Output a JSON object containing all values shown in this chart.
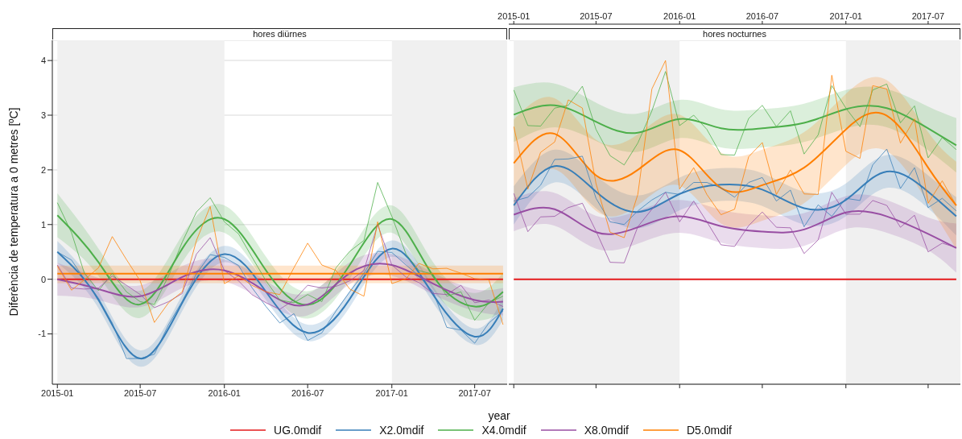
{
  "chart_data": [
    {
      "type": "line",
      "title": "hores diürnes",
      "xlabel": "year",
      "ylabel": "Diferència de temperatura a 0 metres [ºC]",
      "legend": "bottom",
      "grid": "y",
      "x": [
        "2015-01",
        "2015-02",
        "2015-03",
        "2015-04",
        "2015-05",
        "2015-06",
        "2015-07",
        "2015-08",
        "2015-09",
        "2015-10",
        "2015-11",
        "2015-12",
        "2016-01",
        "2016-02",
        "2016-03",
        "2016-04",
        "2016-05",
        "2016-06",
        "2016-07",
        "2016-08",
        "2016-09",
        "2016-10",
        "2016-11",
        "2016-12",
        "2017-01",
        "2017-02",
        "2017-03",
        "2017-04",
        "2017-05",
        "2017-06",
        "2017-07",
        "2017-08",
        "2017-09"
      ],
      "xlim": [
        "2014-12-21",
        "2017-09-10"
      ],
      "xticks": [
        "2015-01",
        "2015-07",
        "2016-01",
        "2016-07",
        "2017-01",
        "2017-07"
      ],
      "ylim": [
        -1.92,
        4.37
      ],
      "yticks": [
        -1,
        0,
        1,
        2,
        3,
        4
      ],
      "bands": [
        {
          "axis": "x",
          "from": "2015-01",
          "to": "2016-01",
          "color": "#f0f0f0"
        },
        {
          "axis": "x",
          "from": "2017-01",
          "to": "2017-09-10",
          "color": "#f0f0f0"
        }
      ],
      "series": [
        {
          "name": "UG.0mdif",
          "color": "#e41a1c",
          "x": [
            "2015-01",
            "2017-09"
          ],
          "values": [
            0,
            0
          ]
        },
        {
          "name": "X2.0mdif",
          "color": "#377eb8",
          "x": [
            "2015-01",
            "2015-04",
            "2015-07",
            "2015-10",
            "2016-01",
            "2016-04",
            "2016-07",
            "2016-10",
            "2017-01",
            "2017-04",
            "2017-07",
            "2017-09"
          ],
          "values": [
            0.5,
            -0.38,
            -1.45,
            -0.43,
            0.46,
            -0.23,
            -0.98,
            -0.36,
            0.56,
            -0.28,
            -1.05,
            -0.54
          ],
          "lower": [
            0.3,
            -0.53,
            -1.6,
            -0.58,
            0.31,
            -0.38,
            -1.13,
            -0.51,
            0.41,
            -0.43,
            -1.2,
            -0.74
          ],
          "upper": [
            0.7,
            -0.23,
            -1.3,
            -0.28,
            0.61,
            -0.08,
            -0.83,
            -0.21,
            0.71,
            -0.13,
            -0.9,
            -0.34
          ]
        },
        {
          "name": "X4.0mdif",
          "color": "#4daf4a",
          "x": [
            "2015-01",
            "2015-04",
            "2015-07",
            "2015-10",
            "2016-01",
            "2016-04",
            "2016-07",
            "2016-10",
            "2017-01",
            "2017-04",
            "2017-07",
            "2017-09"
          ],
          "values": [
            1.17,
            0.31,
            -0.46,
            0.56,
            1.1,
            0.16,
            -0.47,
            0.26,
            1.1,
            0.06,
            -0.5,
            -0.23
          ],
          "lower": [
            0.77,
            0.06,
            -0.71,
            0.31,
            0.85,
            -0.09,
            -0.72,
            0.01,
            0.85,
            -0.19,
            -0.75,
            -0.58
          ],
          "upper": [
            1.57,
            0.56,
            -0.21,
            0.81,
            1.35,
            0.41,
            -0.22,
            0.51,
            1.35,
            0.31,
            -0.25,
            0.12
          ]
        },
        {
          "name": "X8.0mdif",
          "color": "#984ea3",
          "x": [
            "2015-01",
            "2015-04",
            "2015-07",
            "2015-10",
            "2016-01",
            "2016-04",
            "2016-07",
            "2016-10",
            "2017-01",
            "2017-04",
            "2017-07",
            "2017-09"
          ],
          "values": [
            0.0,
            -0.18,
            -0.31,
            0.04,
            0.16,
            -0.23,
            -0.46,
            0.11,
            0.26,
            -0.08,
            -0.38,
            -0.41
          ],
          "lower": [
            -0.3,
            -0.38,
            -0.51,
            -0.16,
            -0.04,
            -0.43,
            -0.66,
            -0.09,
            0.06,
            -0.28,
            -0.58,
            -0.66
          ],
          "upper": [
            0.3,
            0.02,
            -0.11,
            0.24,
            0.36,
            -0.03,
            -0.26,
            0.31,
            0.46,
            0.12,
            -0.18,
            -0.16
          ]
        },
        {
          "name": "D5.0mdif",
          "color": "#ff7f00",
          "x": [
            "2015-01",
            "2017-09"
          ],
          "values": [
            0.1,
            0.1
          ],
          "lower": [
            -0.07,
            -0.07
          ],
          "upper": [
            0.25,
            0.25
          ]
        },
        {
          "color": "#377eb8",
          "values": [
            0.5,
            0.35,
            0.0,
            -0.35,
            -0.8,
            -1.45,
            -1.45,
            -1.37,
            -0.83,
            -0.4,
            0.1,
            0.45,
            0.4,
            0.25,
            -0.15,
            -0.5,
            -0.8,
            -0.63,
            -1.12,
            -0.98,
            -0.58,
            -0.23,
            0.11,
            0.51,
            0.49,
            0.26,
            0.06,
            -0.23,
            -0.88,
            -0.93,
            -1.17,
            -0.8,
            -0.58
          ]
        },
        {
          "color": "#4daf4a",
          "values": [
            1.4,
            0.85,
            0.11,
            -0.21,
            0.11,
            -0.23,
            -0.41,
            -0.46,
            0.06,
            0.68,
            1.23,
            1.49,
            1.05,
            0.83,
            0.41,
            -0.03,
            -0.38,
            -0.43,
            -0.28,
            -0.41,
            0.21,
            0.51,
            0.71,
            1.77,
            1.15,
            0.46,
            0.16,
            0.09,
            -0.31,
            -0.23,
            -0.75,
            -0.43,
            -0.31
          ]
        },
        {
          "color": "#984ea3",
          "values": [
            0.26,
            -0.16,
            -0.18,
            -0.16,
            0.06,
            -0.11,
            -0.28,
            -0.52,
            -0.41,
            -0.26,
            0.46,
            0.76,
            0.16,
            -0.03,
            -0.28,
            -0.43,
            -0.55,
            -0.38,
            -0.11,
            -0.16,
            -0.13,
            -0.03,
            0.16,
            1.0,
            0.26,
            0.04,
            -0.06,
            -0.26,
            -0.28,
            -0.11,
            -0.43,
            -0.38,
            -0.5
          ]
        },
        {
          "color": "#ff7f00",
          "values": [
            0.24,
            -0.2,
            -0.01,
            0.21,
            0.78,
            0.36,
            -0.03,
            -0.79,
            -0.43,
            -0.23,
            0.71,
            1.33,
            -0.08,
            0.06,
            -0.11,
            -0.23,
            -0.28,
            0.21,
            0.66,
            0.26,
            0.16,
            -0.18,
            -0.31,
            1.05,
            -0.08,
            0.01,
            0.29,
            0.19,
            0.2,
            0.11,
            0.01,
            -0.01,
            -0.83
          ]
        }
      ]
    },
    {
      "type": "line",
      "title": "hores nocturnes",
      "grid": "y",
      "tick_labels": false,
      "x": [
        "2015-01",
        "2015-02",
        "2015-03",
        "2015-04",
        "2015-05",
        "2015-06",
        "2015-07",
        "2015-08",
        "2015-09",
        "2015-10",
        "2015-11",
        "2015-12",
        "2016-01",
        "2016-02",
        "2016-03",
        "2016-04",
        "2016-05",
        "2016-06",
        "2016-07",
        "2016-08",
        "2016-09",
        "2016-10",
        "2016-11",
        "2016-12",
        "2017-01",
        "2017-02",
        "2017-03",
        "2017-04",
        "2017-05",
        "2017-06",
        "2017-07",
        "2017-08",
        "2017-09"
      ],
      "xlim": [
        "2014-12-21",
        "2017-09-10"
      ],
      "xticks": [
        {
          "value": "2015-01",
          "label": null
        },
        {
          "value": "2015-07",
          "label": null
        },
        {
          "value": "2016-01",
          "label": null
        },
        {
          "value": "2016-07",
          "label": null
        },
        {
          "value": "2017-01",
          "label": null
        },
        {
          "value": "2017-07",
          "label": null
        }
      ],
      "x2lim": [
        "2014-12-21",
        "2017-09-10"
      ],
      "x2ticks": [
        "2015-01",
        "2015-07",
        "2016-01",
        "2016-07",
        "2017-01",
        "2017-07"
      ],
      "ylim": [
        -1.92,
        4.37
      ],
      "yticks": [
        -1,
        0,
        1,
        2,
        3,
        4
      ],
      "bands": [
        {
          "axis": "x",
          "from": "2015-01",
          "to": "2016-01",
          "color": "#f0f0f0"
        },
        {
          "axis": "x",
          "from": "2017-01",
          "to": "2017-09-10",
          "color": "#f0f0f0"
        }
      ],
      "series": [
        {
          "color": "#e41a1c",
          "x": [
            "2015-01",
            "2017-09"
          ],
          "values": [
            0,
            0
          ]
        },
        {
          "color": "#377eb8",
          "x": [
            "2015-01",
            "2015-04",
            "2015-07",
            "2015-10",
            "2016-01",
            "2016-04",
            "2016-07",
            "2016-10",
            "2017-01",
            "2017-04",
            "2017-07",
            "2017-09"
          ],
          "values": [
            1.35,
            2.07,
            1.6,
            1.23,
            1.56,
            1.73,
            1.64,
            1.3,
            1.45,
            1.97,
            1.6,
            1.15
          ],
          "lower": [
            1.0,
            1.77,
            1.3,
            0.93,
            1.26,
            1.43,
            1.34,
            1.0,
            1.15,
            1.67,
            1.3,
            0.8
          ],
          "upper": [
            1.7,
            2.37,
            1.9,
            1.53,
            1.86,
            2.03,
            1.94,
            1.6,
            1.75,
            2.27,
            1.9,
            1.5
          ]
        },
        {
          "color": "#4daf4a",
          "x": [
            "2015-01",
            "2015-04",
            "2015-07",
            "2015-10",
            "2016-01",
            "2016-04",
            "2016-07",
            "2016-10",
            "2017-01",
            "2017-04",
            "2017-07",
            "2017-09"
          ],
          "values": [
            3.01,
            3.18,
            2.88,
            2.68,
            2.93,
            2.76,
            2.76,
            2.86,
            3.11,
            3.13,
            2.76,
            2.45
          ],
          "lower": [
            2.51,
            2.78,
            2.53,
            2.33,
            2.58,
            2.41,
            2.41,
            2.51,
            2.76,
            2.78,
            2.36,
            1.95
          ],
          "upper": [
            3.51,
            3.58,
            3.23,
            3.03,
            3.28,
            3.11,
            3.11,
            3.21,
            3.46,
            3.48,
            3.16,
            2.95
          ]
        },
        {
          "color": "#984ea3",
          "x": [
            "2015-01",
            "2015-04",
            "2015-07",
            "2015-10",
            "2016-01",
            "2016-04",
            "2016-07",
            "2016-10",
            "2017-01",
            "2017-04",
            "2017-07",
            "2017-09"
          ],
          "values": [
            1.18,
            1.28,
            0.86,
            0.95,
            1.15,
            0.97,
            0.87,
            0.91,
            1.22,
            1.15,
            0.83,
            0.57
          ],
          "lower": [
            0.88,
            0.98,
            0.56,
            0.65,
            0.85,
            0.67,
            0.57,
            0.61,
            0.92,
            0.85,
            0.53,
            0.12
          ],
          "upper": [
            1.48,
            1.58,
            1.16,
            1.25,
            1.45,
            1.27,
            1.17,
            1.21,
            1.52,
            1.45,
            1.13,
            1.02
          ]
        },
        {
          "color": "#ff7f00",
          "x": [
            "2015-01",
            "2015-04",
            "2015-07",
            "2015-10",
            "2016-01",
            "2016-04",
            "2016-07",
            "2016-10",
            "2017-01",
            "2017-04",
            "2017-07",
            "2017-09"
          ],
          "values": [
            2.12,
            2.66,
            1.9,
            2.0,
            2.36,
            1.67,
            1.72,
            2.04,
            2.74,
            2.99,
            2.04,
            1.35
          ],
          "lower": [
            1.32,
            2.01,
            1.25,
            1.35,
            1.71,
            1.02,
            1.07,
            1.39,
            2.09,
            2.34,
            1.39,
            0.55
          ],
          "upper": [
            2.92,
            3.31,
            2.55,
            2.65,
            3.01,
            2.32,
            2.37,
            2.69,
            3.39,
            3.64,
            2.69,
            2.15
          ]
        },
        {
          "color": "#377eb8",
          "values": [
            1.43,
            1.5,
            1.72,
            2.19,
            2.2,
            2.25,
            1.48,
            1.05,
            1.0,
            1.25,
            1.45,
            1.59,
            1.55,
            1.77,
            1.77,
            1.67,
            1.5,
            1.77,
            1.86,
            1.43,
            1.63,
            0.96,
            1.36,
            1.15,
            1.48,
            1.44,
            2.09,
            2.38,
            1.66,
            2.04,
            1.31,
            1.48,
            1.25
          ]
        },
        {
          "color": "#4daf4a",
          "values": [
            3.46,
            2.81,
            2.8,
            3.13,
            3.18,
            3.53,
            2.74,
            2.26,
            2.09,
            2.49,
            3.08,
            3.8,
            2.81,
            3.0,
            2.74,
            2.28,
            2.27,
            2.94,
            3.18,
            2.79,
            3.08,
            2.29,
            2.64,
            3.54,
            3.13,
            2.79,
            3.46,
            3.57,
            2.86,
            3.17,
            2.22,
            2.59,
            2.37
          ]
        },
        {
          "color": "#984ea3",
          "values": [
            1.57,
            0.87,
            1.14,
            1.15,
            1.31,
            1.39,
            0.88,
            0.31,
            0.3,
            0.96,
            1.28,
            1.59,
            1.05,
            1.43,
            1.05,
            0.63,
            0.6,
            0.98,
            1.23,
            0.95,
            0.94,
            0.47,
            0.72,
            1.59,
            1.19,
            1.19,
            1.44,
            1.35,
            0.95,
            1.17,
            0.5,
            0.66,
            0.58
          ]
        },
        {
          "color": "#ff7f00",
          "values": [
            2.79,
            1.65,
            2.32,
            2.51,
            3.28,
            3.13,
            1.75,
            0.86,
            0.76,
            1.55,
            3.48,
            4.0,
            1.65,
            2.04,
            1.55,
            1.18,
            1.28,
            2.24,
            2.5,
            1.55,
            2.0,
            1.56,
            1.55,
            3.73,
            2.34,
            2.21,
            3.54,
            3.48,
            2.49,
            2.93,
            1.39,
            1.8,
            1.35
          ]
        }
      ]
    }
  ]
}
